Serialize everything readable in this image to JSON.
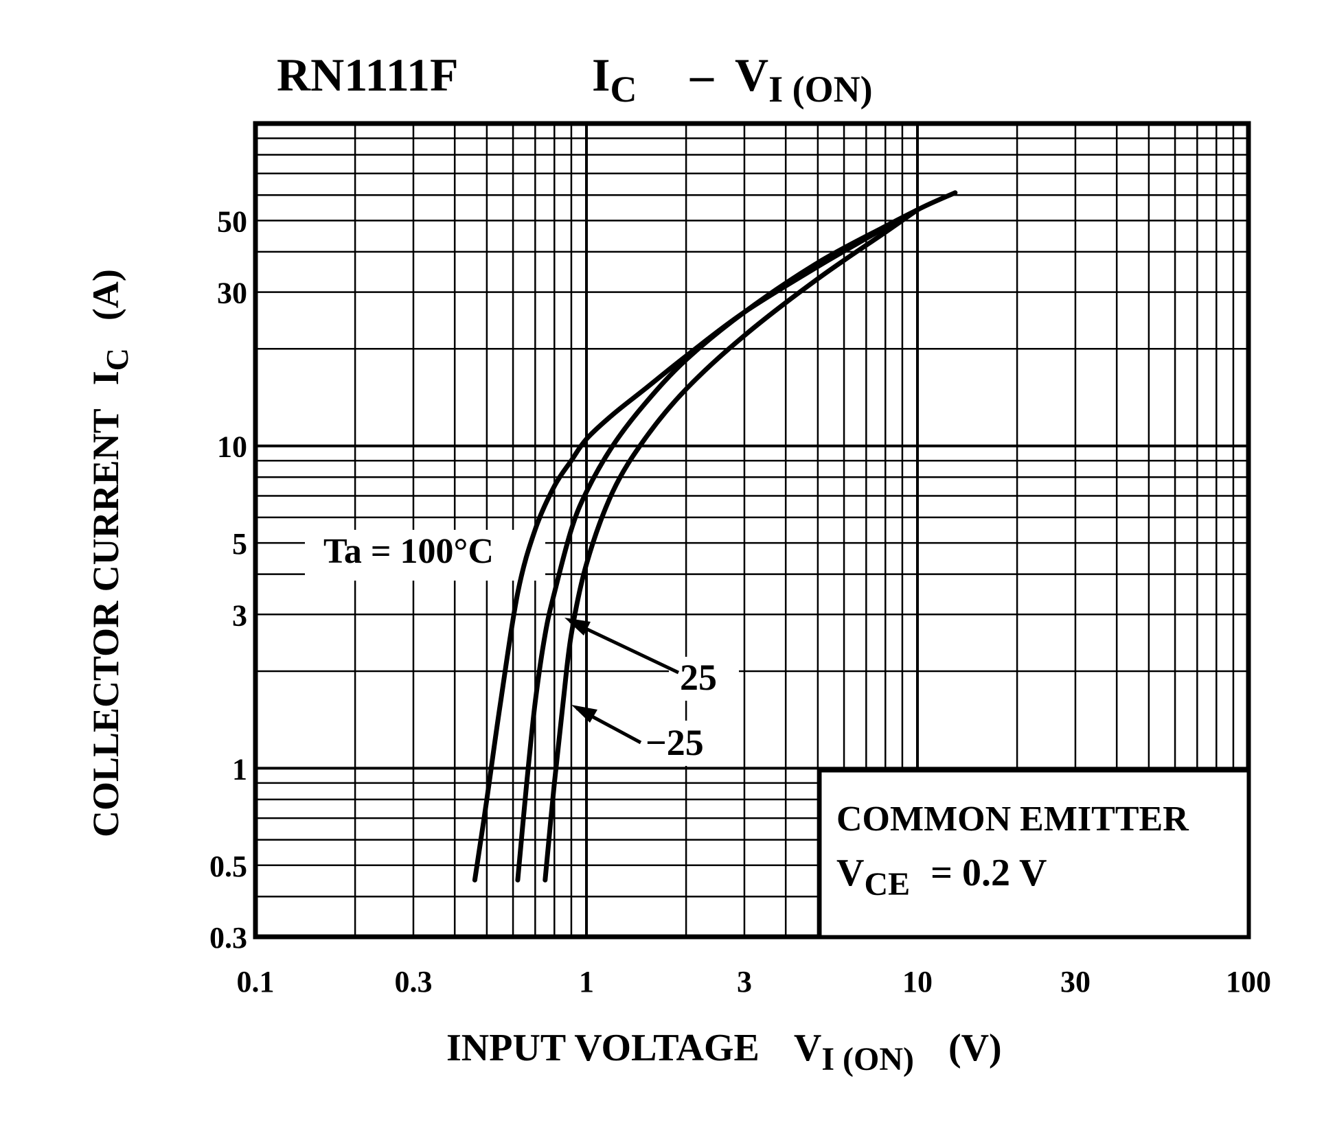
{
  "chart_data": {
    "type": "line",
    "title": {
      "device": "RN1111F",
      "ic_main": "I",
      "ic_sub": "C",
      "dash": "–",
      "vi_main": "V",
      "vi_sub": "I (ON)"
    },
    "xaxis": {
      "scale": "log",
      "range": [
        0.1,
        100
      ],
      "ticks": [
        0.1,
        0.3,
        1,
        3,
        10,
        30,
        100
      ],
      "tick_labels": [
        "0.1",
        "0.3",
        "1",
        "3",
        "10",
        "30",
        "100"
      ],
      "label_text": "INPUT  VOLTAGE",
      "label_sym": "V",
      "label_sub": "I (ON)",
      "label_unit": "(V)"
    },
    "yaxis": {
      "scale": "log",
      "range": [
        0.3,
        100
      ],
      "ticks": [
        0.3,
        0.5,
        1,
        3,
        5,
        10,
        30,
        50
      ],
      "tick_labels": [
        "0.3",
        "0.5",
        "1",
        "3",
        "5",
        "10",
        "30",
        "50"
      ],
      "label_text": "COLLECTOR CURRENT",
      "label_sym": "I",
      "label_sub": "C",
      "label_unit": "(A)"
    },
    "series": [
      {
        "name": "Ta = 100°C",
        "x": [
          0.46,
          0.5,
          0.55,
          0.62,
          0.7,
          0.8,
          0.9,
          1.0,
          1.2,
          1.5,
          2.0,
          3.0,
          5.0,
          7.0,
          10.0,
          13.0
        ],
        "y": [
          0.45,
          0.8,
          1.6,
          3.5,
          5.5,
          7.5,
          9.0,
          10.5,
          12.5,
          15.0,
          19.0,
          26.0,
          36.0,
          44.0,
          54.0,
          61.0
        ]
      },
      {
        "name": "25",
        "x": [
          0.62,
          0.66,
          0.7,
          0.75,
          0.8,
          0.9,
          1.0,
          1.2,
          1.5,
          2.0,
          3.0,
          5.0,
          8.0,
          10.0
        ],
        "y": [
          0.45,
          0.9,
          1.6,
          2.6,
          3.5,
          5.5,
          7.2,
          10.0,
          13.5,
          18.5,
          26.0,
          37.0,
          48.0,
          54.0
        ]
      },
      {
        "name": "-25",
        "x": [
          0.75,
          0.8,
          0.85,
          0.9,
          1.0,
          1.2,
          1.5,
          2.0,
          3.0,
          5.0,
          8.0,
          10.0
        ],
        "y": [
          0.45,
          0.9,
          1.6,
          2.6,
          4.3,
          7.2,
          10.5,
          15.0,
          22.0,
          33.0,
          46.0,
          54.0
        ]
      }
    ],
    "annotations": {
      "label_100": "Ta = 100°C",
      "label_25": "25",
      "label_m25": "−25",
      "common_emitter": "COMMON  EMITTER",
      "vce_sym": "V",
      "vce_sub": "CE",
      "vce_value": "= 0.2 V"
    }
  }
}
